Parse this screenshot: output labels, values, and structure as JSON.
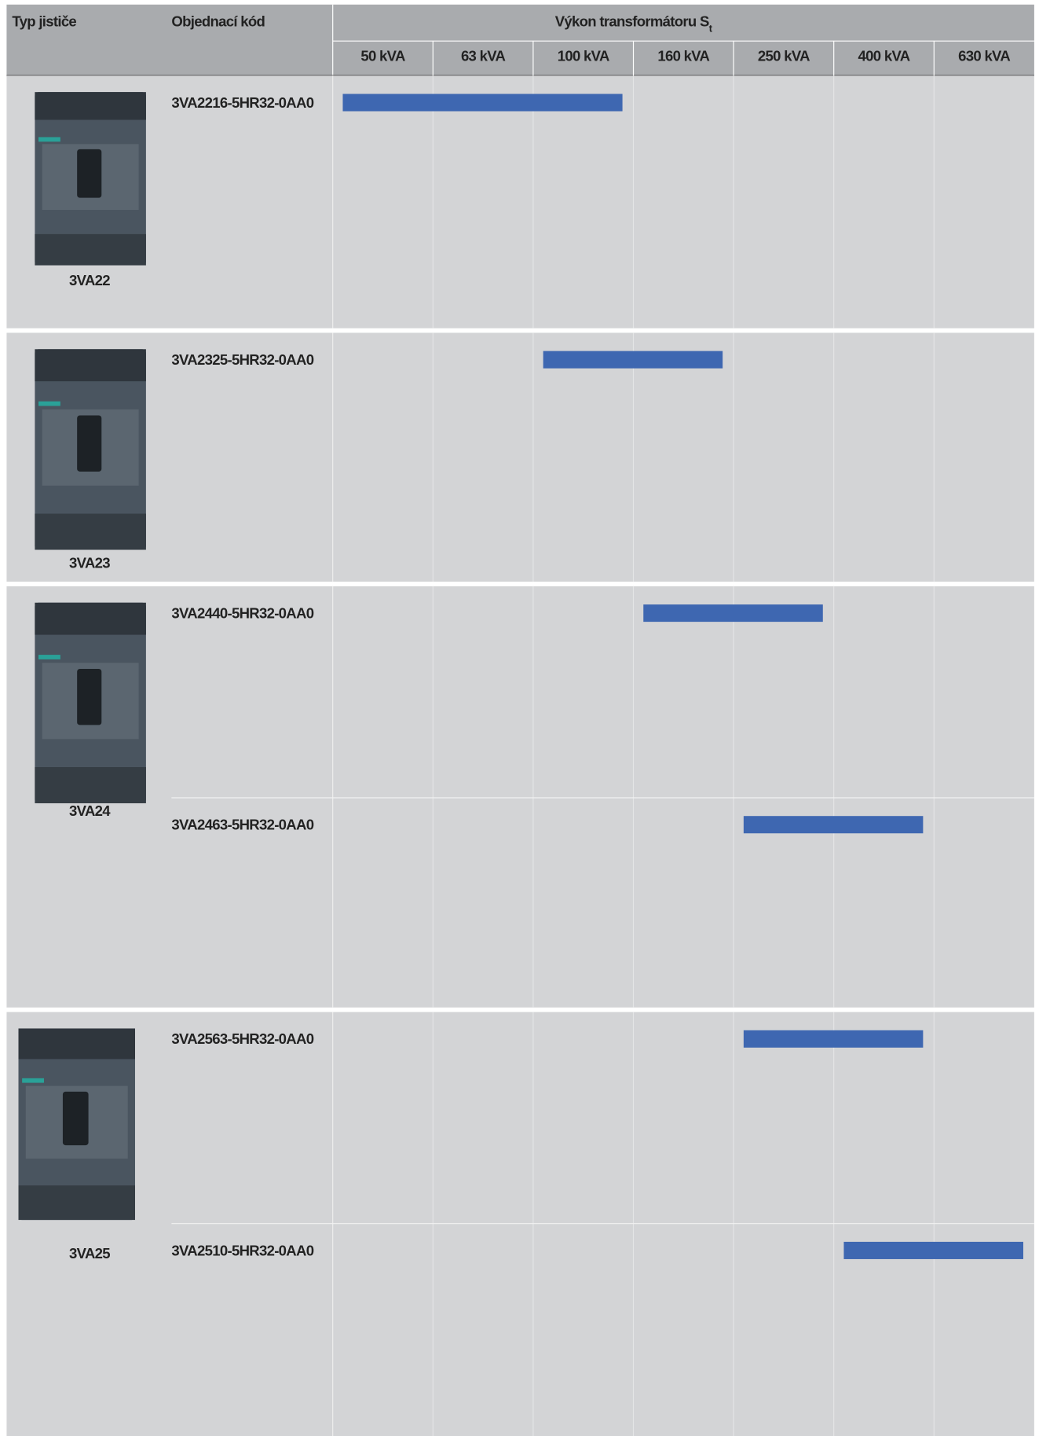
{
  "header": {
    "type": "Typ jističe",
    "code": "Objednací kód",
    "power": "Výkon transformátoru S",
    "power_sub": "t",
    "columns": [
      "50 kVA",
      "63 kVA",
      "100 kVA",
      "160 kVA",
      "250 kVA",
      "400 kVA",
      "630 kVA"
    ]
  },
  "groups": [
    {
      "type": "3VA22",
      "items": [
        {
          "code": "3VA2216-5HR32-0AA0",
          "range": [
            "50 kVA",
            "100 kVA"
          ]
        }
      ]
    },
    {
      "type": "3VA23",
      "items": [
        {
          "code": "3VA2325-5HR32-0AA0",
          "range": [
            "100 kVA",
            "160 kVA"
          ]
        }
      ]
    },
    {
      "type": "3VA24",
      "items": [
        {
          "code": "3VA2440-5HR32-0AA0",
          "range": [
            "160 kVA",
            "250 kVA"
          ]
        },
        {
          "code": "3VA2463-5HR32-0AA0",
          "range": [
            "250 kVA",
            "400 kVA"
          ]
        }
      ]
    },
    {
      "type": "3VA25",
      "items": [
        {
          "code": "3VA2563-5HR32-0AA0",
          "range": [
            "250 kVA",
            "400 kVA"
          ]
        },
        {
          "code": "3VA2510-5HR32-0AA0",
          "range": [
            "400 kVA",
            "630 kVA"
          ]
        }
      ]
    }
  ]
}
